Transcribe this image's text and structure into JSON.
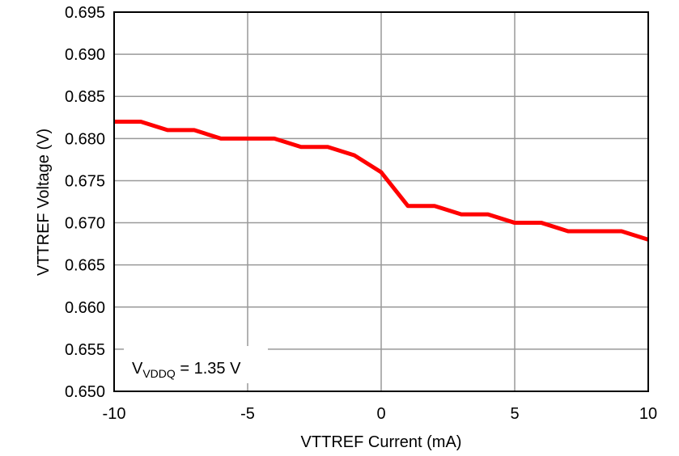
{
  "chart_data": {
    "type": "line",
    "xlabel": "VTTREF Current (mA)",
    "ylabel": "VTTREF Voltage (V)",
    "xlim": [
      -10,
      10
    ],
    "ylim": [
      0.65,
      0.695
    ],
    "xticks": [
      "-10",
      "-5",
      "0",
      "5",
      "10"
    ],
    "yticks": [
      "0.650",
      "0.655",
      "0.660",
      "0.665",
      "0.670",
      "0.675",
      "0.680",
      "0.685",
      "0.690",
      "0.695"
    ],
    "grid": true,
    "annotation": {
      "main": "V",
      "sub": "VDDQ",
      "rest": " = 1.35 V"
    },
    "series": [
      {
        "color": "#ff0000",
        "x": [
          -10,
          -9,
          -8,
          -7,
          -6,
          -5,
          -4,
          -3,
          -2,
          -1,
          0,
          1,
          2,
          3,
          4,
          5,
          6,
          7,
          8,
          9,
          10
        ],
        "y": [
          0.682,
          0.682,
          0.681,
          0.681,
          0.68,
          0.68,
          0.68,
          0.679,
          0.679,
          0.678,
          0.676,
          0.672,
          0.672,
          0.671,
          0.671,
          0.67,
          0.67,
          0.669,
          0.669,
          0.669,
          0.668
        ]
      }
    ]
  }
}
